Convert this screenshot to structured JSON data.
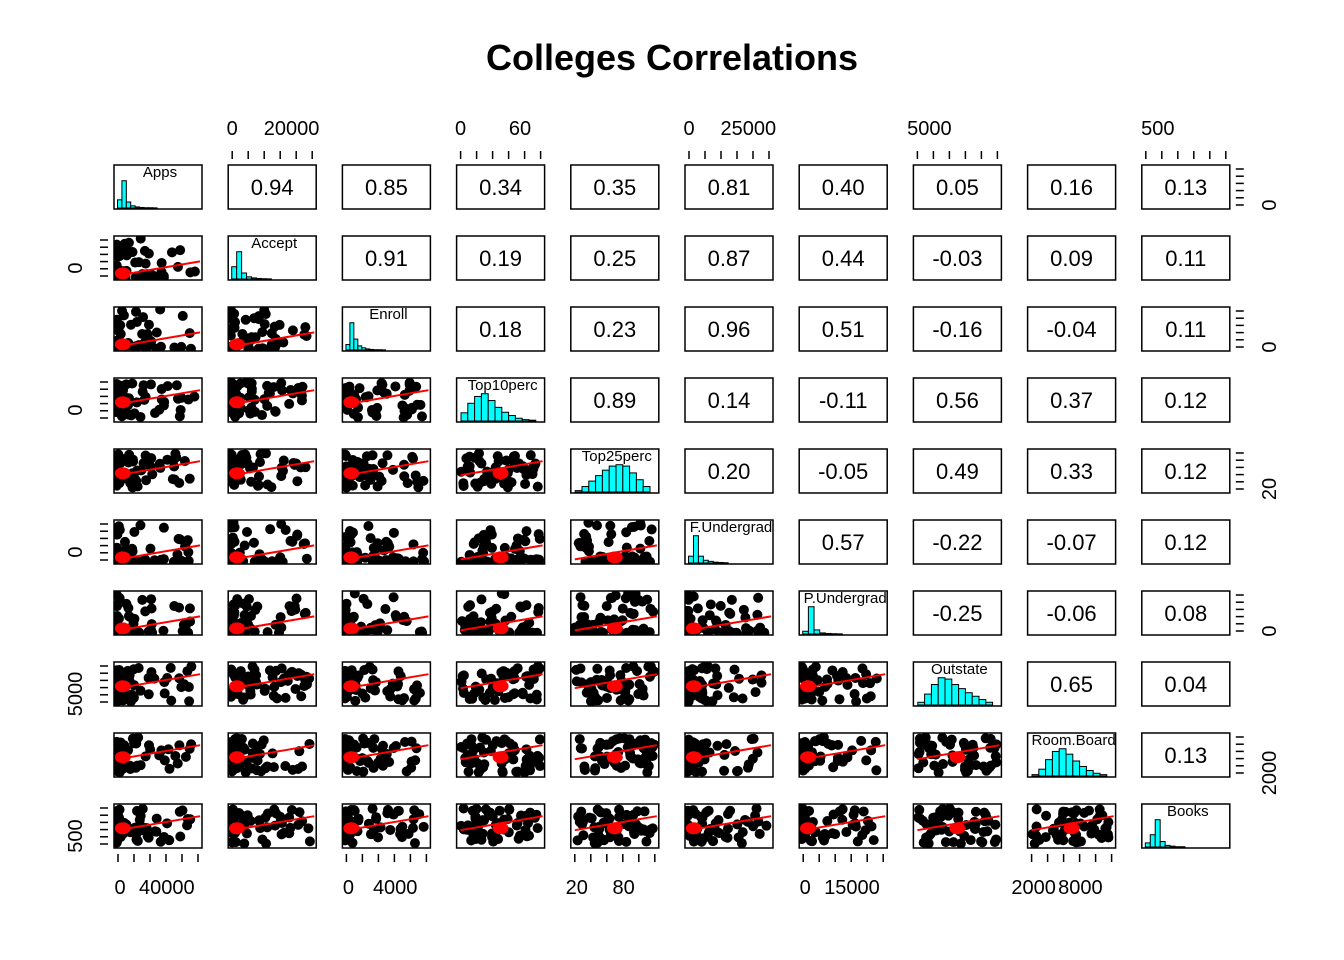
{
  "chart_data": {
    "type": "scatter",
    "title": "Colleges Correlations",
    "variables": [
      "Apps",
      "Accept",
      "Enroll",
      "Top10perc",
      "Top25perc",
      "F.Undergrad",
      "P.Undergrad",
      "Outstate",
      "Room.Board",
      "Books"
    ],
    "correlations": [
      [
        "",
        "0.94",
        "0.85",
        "0.34",
        "0.35",
        "0.81",
        "0.40",
        "0.05",
        "0.16",
        "0.13"
      ],
      [
        "",
        "",
        "0.91",
        "0.19",
        "0.25",
        "0.87",
        "0.44",
        "-0.03",
        "0.09",
        "0.11"
      ],
      [
        "",
        "",
        "",
        "0.18",
        "0.23",
        "0.96",
        "0.51",
        "-0.16",
        "-0.04",
        "0.11"
      ],
      [
        "",
        "",
        "",
        "",
        "0.89",
        "0.14",
        "-0.11",
        "0.56",
        "0.37",
        "0.12"
      ],
      [
        "",
        "",
        "",
        "",
        "",
        "0.20",
        "-0.05",
        "0.49",
        "0.33",
        "0.12"
      ],
      [
        "",
        "",
        "",
        "",
        "",
        "",
        "0.57",
        "-0.22",
        "-0.07",
        "0.12"
      ],
      [
        "",
        "",
        "",
        "",
        "",
        "",
        "",
        "-0.25",
        "-0.06",
        "0.08"
      ],
      [
        "",
        "",
        "",
        "",
        "",
        "",
        "",
        "",
        "0.65",
        "0.04"
      ],
      [
        "",
        "",
        "",
        "",
        "",
        "",
        "",
        "",
        "",
        "0.13"
      ],
      [
        "",
        "",
        "",
        "",
        "",
        "",
        "",
        "",
        "",
        ""
      ]
    ],
    "histograms": [
      [
        0.3,
        1.0,
        0.22,
        0.08,
        0.04,
        0.02,
        0.01,
        0.01,
        0.005
      ],
      [
        0.45,
        1.0,
        0.22,
        0.08,
        0.04,
        0.02,
        0.01,
        0.005
      ],
      [
        0.2,
        1.0,
        0.4,
        0.15,
        0.08,
        0.04,
        0.02,
        0.01,
        0.01,
        0.005
      ],
      [
        0.3,
        0.65,
        0.9,
        1.0,
        0.75,
        0.5,
        0.32,
        0.2,
        0.1,
        0.05,
        0.03
      ],
      [
        0.05,
        0.2,
        0.4,
        0.6,
        0.8,
        0.95,
        1.0,
        0.95,
        0.7,
        0.45,
        0.2
      ],
      [
        0.25,
        1.0,
        0.25,
        0.1,
        0.06,
        0.03,
        0.02,
        0.01
      ],
      [
        0.1,
        1.0,
        0.15,
        0.04,
        0.02,
        0.01,
        0.005
      ],
      [
        0.1,
        0.4,
        0.75,
        1.0,
        0.95,
        0.75,
        0.6,
        0.45,
        0.32,
        0.2,
        0.1
      ],
      [
        0.05,
        0.25,
        0.6,
        0.9,
        1.0,
        0.8,
        0.55,
        0.35,
        0.2,
        0.1,
        0.05
      ],
      [
        0.15,
        0.45,
        1.0,
        0.2,
        0.06,
        0.03,
        0.01,
        0.01
      ]
    ],
    "axis_ticks": {
      "top": [
        {
          "column": 1,
          "labels": [
            "0",
            "20000"
          ]
        },
        {
          "column": 3,
          "labels": [
            "0",
            "60"
          ]
        },
        {
          "column": 5,
          "labels": [
            "0",
            "25000"
          ]
        },
        {
          "column": 7,
          "labels": [
            "5000"
          ]
        },
        {
          "column": 9,
          "labels": [
            "500"
          ]
        }
      ],
      "bottom": [
        {
          "column": 0,
          "labels": [
            "0",
            "40000"
          ]
        },
        {
          "column": 2,
          "labels": [
            "0",
            "4000"
          ]
        },
        {
          "column": 4,
          "labels": [
            "20",
            "80"
          ]
        },
        {
          "column": 6,
          "labels": [
            "0",
            "15000"
          ]
        },
        {
          "column": 8,
          "labels": [
            "2000",
            "8000"
          ]
        }
      ],
      "left": [
        {
          "row": 1,
          "labels": [
            "0"
          ]
        },
        {
          "row": 3,
          "labels": [
            "0"
          ]
        },
        {
          "row": 5,
          "labels": [
            "0"
          ]
        },
        {
          "row": 7,
          "labels": [
            "5000"
          ]
        },
        {
          "row": 9,
          "labels": [
            "500"
          ]
        }
      ],
      "right": [
        {
          "row": 0,
          "labels": [
            "0"
          ]
        },
        {
          "row": 2,
          "labels": [
            "0"
          ]
        },
        {
          "row": 4,
          "labels": [
            "20"
          ]
        },
        {
          "row": 6,
          "labels": [
            "0"
          ]
        },
        {
          "row": 8,
          "labels": [
            "2000"
          ]
        }
      ]
    },
    "colors": {
      "histogram_fill": "#00FFFF",
      "points": "#000000",
      "smooth_line": "#FF0000",
      "ellipse": "#FF0000"
    }
  }
}
